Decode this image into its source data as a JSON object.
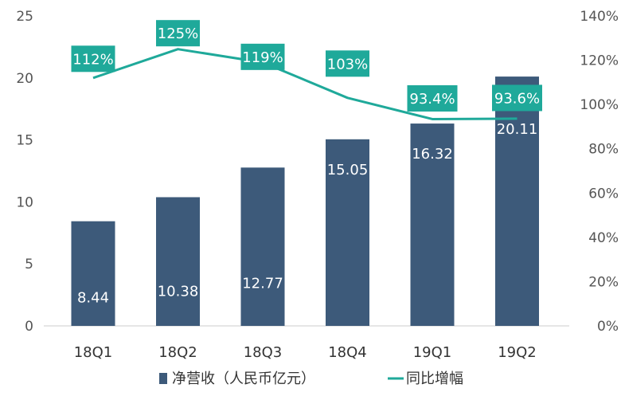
{
  "chart_data": {
    "type": "bar",
    "categories": [
      "18Q1",
      "18Q2",
      "18Q3",
      "18Q4",
      "19Q1",
      "19Q2"
    ],
    "series": [
      {
        "name": "净营收（人民币亿元）",
        "type": "bar",
        "axis": "left",
        "color": "#3d5a7a",
        "values": [
          8.44,
          10.38,
          12.77,
          15.05,
          16.32,
          20.11
        ],
        "labels": [
          "8.44",
          "10.38",
          "12.77",
          "15.05",
          "16.32",
          "20.11"
        ]
      },
      {
        "name": "同比增幅",
        "type": "line",
        "axis": "right",
        "color": "#1fa99a",
        "values": [
          1.12,
          1.25,
          1.19,
          1.03,
          0.934,
          0.936
        ],
        "labels": [
          "112%",
          "125%",
          "119%",
          "103%",
          "93.4%",
          "93.6%"
        ]
      }
    ],
    "y_left": {
      "min": 0,
      "max": 25,
      "ticks": [
        "0",
        "5",
        "10",
        "15",
        "20",
        "25"
      ]
    },
    "y_right": {
      "min": 0,
      "max": 1.4,
      "ticks": [
        "0%",
        "20%",
        "40%",
        "60%",
        "80%",
        "100%",
        "120%",
        "140%"
      ]
    },
    "grid": false,
    "legend": "bottom",
    "title": "",
    "xlabel": "",
    "ylabel": ""
  }
}
